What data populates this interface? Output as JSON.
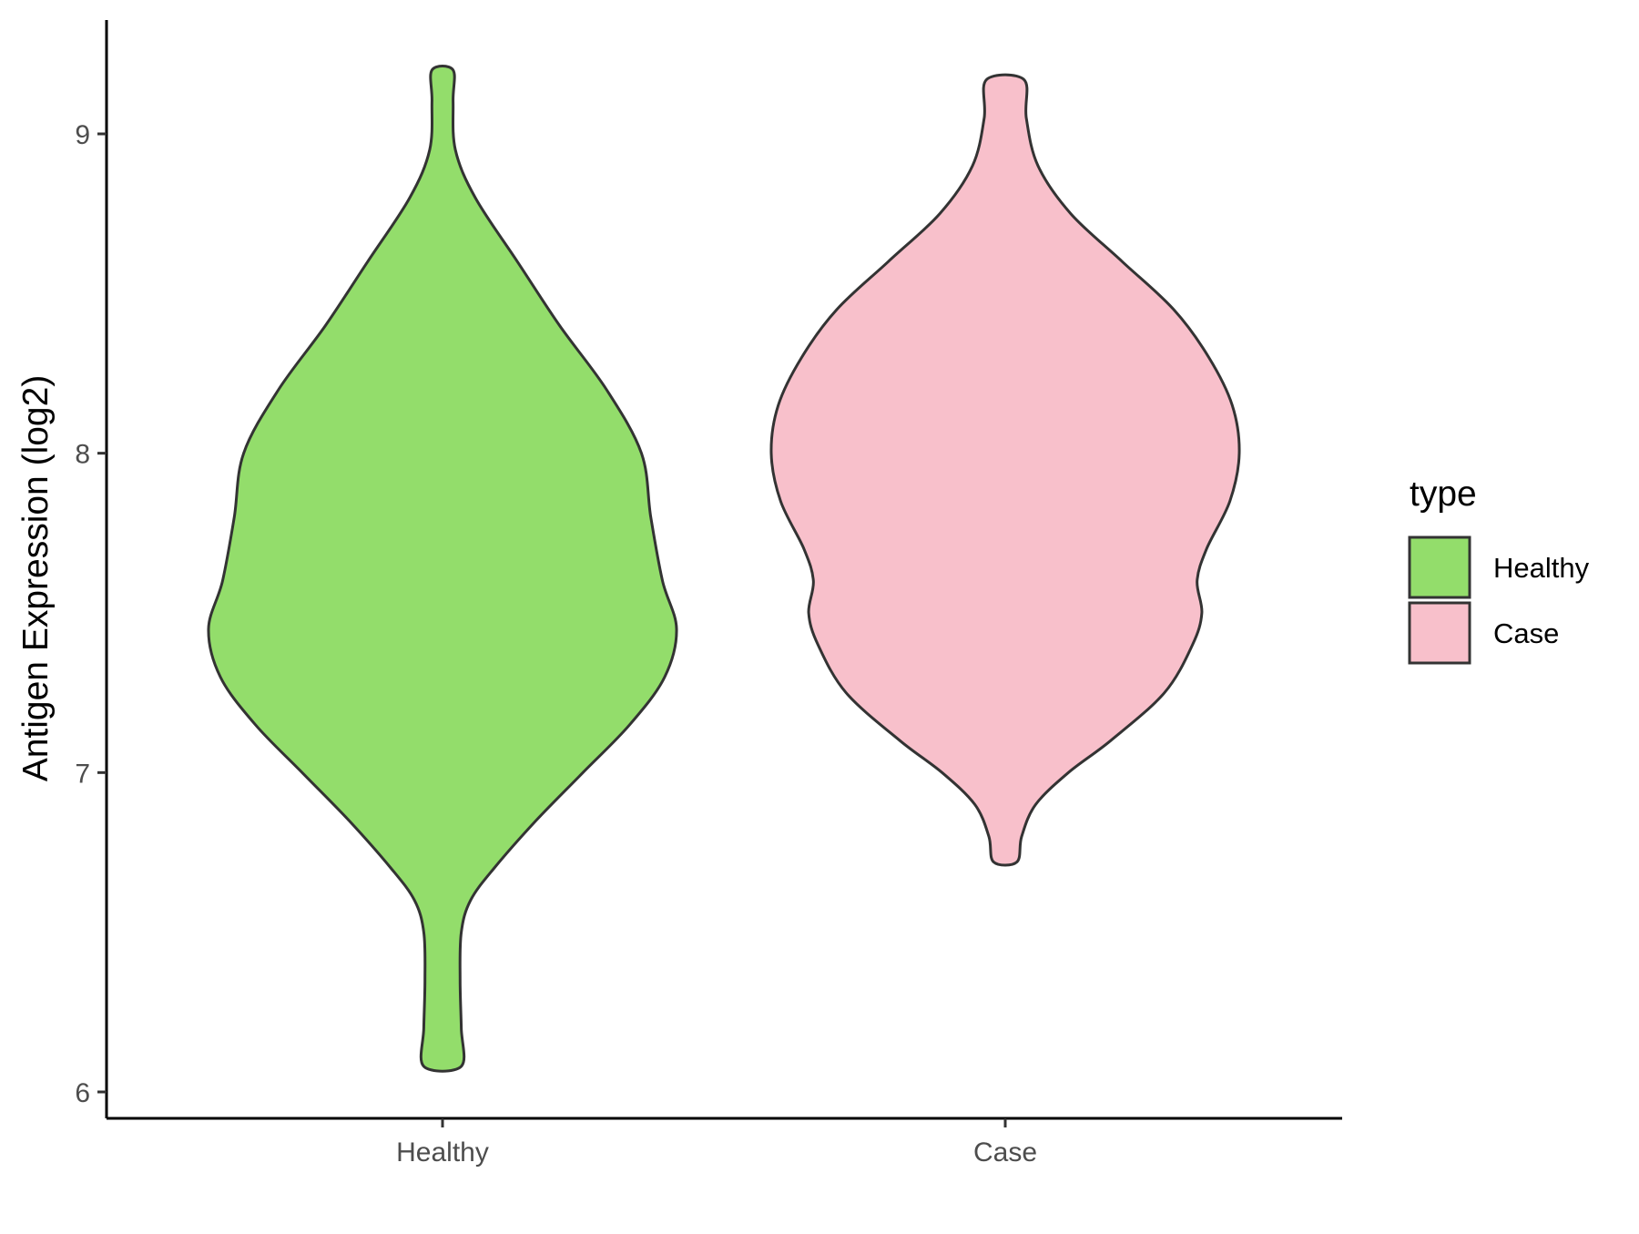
{
  "chart_data": {
    "type": "violin",
    "title": "",
    "xlabel": "",
    "ylabel": "Antigen Expression (log2)",
    "ylim": [
      5.92,
      9.35
    ],
    "yticks": [
      6,
      7,
      8,
      9
    ],
    "grid": false,
    "legend_position": "right",
    "legend_title": "type",
    "categories": [
      "Healthy",
      "Case"
    ],
    "series": [
      {
        "name": "Healthy",
        "color": "#93dd6b",
        "min": 6.08,
        "max": 9.2,
        "density_profile": [
          {
            "y": 6.08,
            "w": 0.08
          },
          {
            "y": 6.2,
            "w": 0.08
          },
          {
            "y": 6.35,
            "w": 0.075
          },
          {
            "y": 6.5,
            "w": 0.08
          },
          {
            "y": 6.6,
            "w": 0.12
          },
          {
            "y": 6.7,
            "w": 0.22
          },
          {
            "y": 6.85,
            "w": 0.4
          },
          {
            "y": 7.0,
            "w": 0.6
          },
          {
            "y": 7.15,
            "w": 0.8
          },
          {
            "y": 7.3,
            "w": 0.95
          },
          {
            "y": 7.45,
            "w": 1.0
          },
          {
            "y": 7.6,
            "w": 0.94
          },
          {
            "y": 7.8,
            "w": 0.89
          },
          {
            "y": 8.0,
            "w": 0.85
          },
          {
            "y": 8.2,
            "w": 0.7
          },
          {
            "y": 8.4,
            "w": 0.5
          },
          {
            "y": 8.6,
            "w": 0.32
          },
          {
            "y": 8.8,
            "w": 0.14
          },
          {
            "y": 8.95,
            "w": 0.055
          },
          {
            "y": 9.1,
            "w": 0.045
          },
          {
            "y": 9.2,
            "w": 0.045
          }
        ]
      },
      {
        "name": "Case",
        "color": "#f8c0cb",
        "min": 6.72,
        "max": 9.17,
        "density_profile": [
          {
            "y": 6.72,
            "w": 0.05
          },
          {
            "y": 6.8,
            "w": 0.07
          },
          {
            "y": 6.9,
            "w": 0.13
          },
          {
            "y": 7.0,
            "w": 0.27
          },
          {
            "y": 7.1,
            "w": 0.45
          },
          {
            "y": 7.25,
            "w": 0.68
          },
          {
            "y": 7.4,
            "w": 0.8
          },
          {
            "y": 7.5,
            "w": 0.84
          },
          {
            "y": 7.6,
            "w": 0.82
          },
          {
            "y": 7.7,
            "w": 0.86
          },
          {
            "y": 7.85,
            "w": 0.96
          },
          {
            "y": 8.0,
            "w": 1.0
          },
          {
            "y": 8.15,
            "w": 0.97
          },
          {
            "y": 8.3,
            "w": 0.87
          },
          {
            "y": 8.45,
            "w": 0.72
          },
          {
            "y": 8.6,
            "w": 0.5
          },
          {
            "y": 8.75,
            "w": 0.28
          },
          {
            "y": 8.9,
            "w": 0.14
          },
          {
            "y": 9.05,
            "w": 0.09
          },
          {
            "y": 9.17,
            "w": 0.08
          }
        ]
      }
    ]
  }
}
